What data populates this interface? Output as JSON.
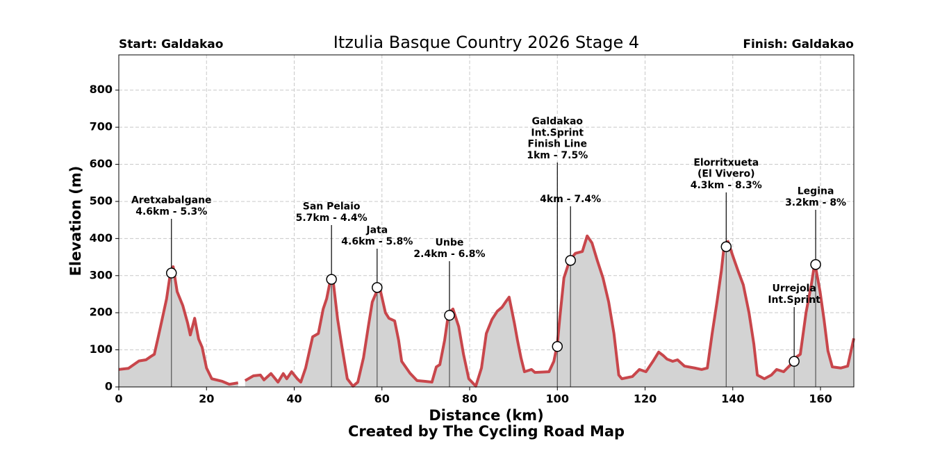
{
  "chart_data": {
    "type": "line",
    "title": "Itzulia Basque Country 2026 Stage 4",
    "start_label": "Start: Galdakao",
    "finish_label": "Finish: Galdakao",
    "x_label": "Distance (km)",
    "y_label": "Elevation (m)",
    "credit": "Created by The Cycling Road Map",
    "xlim": [
      0,
      167.6
    ],
    "ylim": [
      0,
      895
    ],
    "xticks": [
      0,
      20,
      40,
      60,
      80,
      100,
      120,
      140,
      160
    ],
    "yticks": [
      0,
      100,
      200,
      300,
      400,
      500,
      600,
      700,
      800
    ],
    "grid": true,
    "line_color": "#c8464b",
    "fill_color": "#d3d3d3",
    "x": [
      0,
      2.2,
      4.6,
      6.2,
      7.3,
      8.1,
      9,
      9.8,
      10.9,
      11.6,
      12.4,
      13.3,
      14.6,
      15.7,
      16.3,
      17.3,
      18.2,
      19,
      20,
      21.2,
      23.6,
      25.2,
      27.2,
      28,
      28.8,
      30.7,
      32.3,
      33.1,
      34.7,
      36.3,
      37.5,
      38.3,
      39.4,
      40.7,
      41.5,
      42.6,
      44.2,
      45.5,
      46.6,
      47.4,
      48.2,
      48.8,
      49.9,
      50.9,
      52.1,
      53.4,
      54.5,
      55.8,
      56.9,
      57.8,
      58.8,
      59.7,
      60.8,
      61.6,
      62.9,
      63.8,
      64.5,
      66.4,
      68,
      69.9,
      71.4,
      72.4,
      73.2,
      74.3,
      75.2,
      76.2,
      77.5,
      78.6,
      79.8,
      81.4,
      82.7,
      83.8,
      85.1,
      86.3,
      87.4,
      88.2,
      89,
      90.2,
      90.9,
      91.7,
      92.5,
      94.1,
      94.9,
      98.1,
      99.2,
      100,
      100.6,
      101.5,
      102.8,
      104.1,
      105.7,
      106.8,
      107.9,
      109.1,
      110.4,
      111.7,
      112.9,
      114,
      114.7,
      117.1,
      118.7,
      120.2,
      121.8,
      123.1,
      124.2,
      125,
      126.3,
      127.4,
      129,
      131.3,
      132.9,
      134.2,
      135.3,
      136.4,
      137.4,
      138,
      138.9,
      140.1,
      141.2,
      142.4,
      143.7,
      144.8,
      145.6,
      147.2,
      148.8,
      150,
      151.6,
      153.2,
      154.3,
      155.4,
      156.7,
      157.9,
      158.7,
      159.9,
      160.8,
      161.7,
      162.7,
      164.6,
      166.2,
      167.6
    ],
    "values": [
      47,
      50,
      70,
      73,
      82,
      88,
      135,
      178,
      238,
      294,
      324,
      257,
      219,
      172,
      140,
      185,
      129,
      107,
      51,
      22,
      15,
      7,
      11,
      null,
      17,
      30,
      32,
      19,
      36,
      13,
      36,
      22,
      41,
      22,
      13,
      51,
      135,
      144,
      210,
      238,
      285,
      294,
      182,
      107,
      22,
      2,
      13,
      79,
      163,
      229,
      257,
      257,
      200,
      185,
      178,
      126,
      69,
      37,
      17,
      15,
      13,
      54,
      60,
      126,
      200,
      210,
      163,
      88,
      22,
      2,
      51,
      144,
      182,
      204,
      215,
      229,
      242,
      172,
      126,
      79,
      41,
      47,
      39,
      41,
      69,
      116,
      191,
      294,
      341,
      360,
      365,
      407,
      388,
      341,
      294,
      229,
      144,
      32,
      22,
      28,
      47,
      41,
      69,
      94,
      84,
      75,
      69,
      73,
      56,
      51,
      47,
      51,
      144,
      229,
      313,
      378,
      392,
      350,
      313,
      275,
      200,
      116,
      32,
      22,
      32,
      47,
      41,
      60,
      79,
      88,
      200,
      275,
      335,
      257,
      182,
      97,
      54,
      51,
      56,
      131
    ],
    "climbs": [
      {
        "x": 12,
        "y": 307,
        "lines": [
          "Aretxabalgane",
          "4.6km - 5.3%"
        ]
      },
      {
        "x": 48.5,
        "y": 290,
        "lines": [
          "San Pelaio",
          "5.7km - 4.4%"
        ]
      },
      {
        "x": 58.9,
        "y": 268,
        "lines": [
          "Jata",
          "4.6km - 5.8%"
        ]
      },
      {
        "x": 75.4,
        "y": 193,
        "lines": [
          "Unbe",
          "2.4km - 6.8%"
        ]
      },
      {
        "x": 100,
        "y": 109,
        "lines": [
          "Galdakao",
          "Int.Sprint",
          "Finish Line",
          "1km - 7.5%"
        ]
      },
      {
        "x": 103,
        "y": 341,
        "lines": [
          "4km - 7.4%"
        ]
      },
      {
        "x": 138.5,
        "y": 378,
        "lines": [
          "Elorritxueta",
          "(El Vivero)",
          "4.3km - 8.3%"
        ]
      },
      {
        "x": 154,
        "y": 69,
        "lines": [
          "Urrejola",
          "Int.Sprint"
        ]
      },
      {
        "x": 158.9,
        "y": 330,
        "lines": [
          "Legina",
          "3.2km - 8%"
        ]
      }
    ]
  }
}
